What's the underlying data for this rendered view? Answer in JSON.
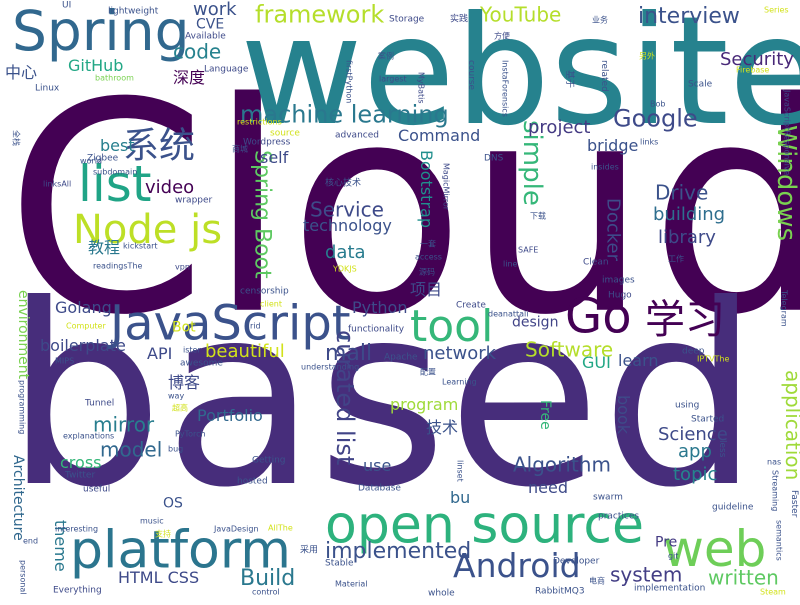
{
  "words": [
    {
      "text": "Cloud",
      "color": "#440154"
    },
    {
      "text": "based",
      "color": "#472d7b"
    },
    {
      "text": "website",
      "color": "#26828e"
    },
    {
      "text": "open source",
      "color": "#2db27d"
    },
    {
      "text": "platform",
      "color": "#2b758e"
    },
    {
      "text": "Spring",
      "color": "#31688e"
    },
    {
      "text": "JavaScript",
      "color": "#3b528b"
    },
    {
      "text": "tool",
      "color": "#35b779"
    },
    {
      "text": "Go",
      "color": "#440154"
    },
    {
      "text": "web",
      "color": "#6ece58"
    },
    {
      "text": "Android",
      "color": "#3b528b"
    },
    {
      "text": "list",
      "color": "#20a486"
    },
    {
      "text": "Node js",
      "color": "#bddf26"
    },
    {
      "text": "Windows",
      "color": "#7ad151"
    },
    {
      "text": "学习",
      "color": "#440154"
    },
    {
      "text": "系统",
      "color": "#3b528b"
    },
    {
      "text": "simple",
      "color": "#35b779"
    },
    {
      "text": "curated list",
      "color": "#414487"
    },
    {
      "text": "framework",
      "color": "#b5de2b"
    },
    {
      "text": "machine learning",
      "color": "#2a788e"
    },
    {
      "text": "Google",
      "color": "#3e4a89"
    },
    {
      "text": "interview",
      "color": "#3b528b"
    },
    {
      "text": "Spring Boot",
      "color": "#5ec962"
    },
    {
      "text": "application",
      "color": "#9fda3a"
    },
    {
      "text": "mall",
      "color": "#3e4a89"
    },
    {
      "text": "implemented",
      "color": "#3b528b"
    },
    {
      "text": "Build",
      "color": "#2a788e"
    },
    {
      "text": "Software",
      "color": "#b5de2b"
    },
    {
      "text": "Algorithm",
      "color": "#3b528b"
    },
    {
      "text": "system",
      "color": "#433e85"
    },
    {
      "text": "written",
      "color": "#5ec962"
    },
    {
      "text": "YouTube",
      "color": "#b5de2b"
    },
    {
      "text": "Security",
      "color": "#482878"
    },
    {
      "text": "project",
      "color": "#443a83"
    },
    {
      "text": "Drive",
      "color": "#3b528b"
    },
    {
      "text": "building",
      "color": "#2e6e8e"
    },
    {
      "text": "library",
      "color": "#3e4a89"
    },
    {
      "text": "Service",
      "color": "#3e4a89"
    },
    {
      "text": "Docker",
      "color": "#3e4a89"
    },
    {
      "text": "network",
      "color": "#3b528b"
    },
    {
      "text": "beautiful",
      "color": "#d2e21b"
    },
    {
      "text": "mirror",
      "color": "#287d8e"
    },
    {
      "text": "model",
      "color": "#31688e"
    },
    {
      "text": "Science",
      "color": "#3e4a89"
    },
    {
      "text": "app",
      "color": "#2a788e"
    },
    {
      "text": "topic",
      "color": "#25848e"
    },
    {
      "text": "GitHub",
      "color": "#22a785"
    },
    {
      "text": "code",
      "color": "#26828e"
    },
    {
      "text": "work",
      "color": "#3b528b"
    },
    {
      "text": "video",
      "color": "#440154"
    },
    {
      "text": "data",
      "color": "#287c8e"
    },
    {
      "text": "technology",
      "color": "#3b528b"
    },
    {
      "text": "Bootstrap",
      "color": "#218f8d"
    },
    {
      "text": "Command",
      "color": "#3b528b"
    },
    {
      "text": "bridge",
      "color": "#3b528b"
    },
    {
      "text": "best",
      "color": "#277f8e"
    },
    {
      "text": "self",
      "color": "#3e4a89"
    },
    {
      "text": "教程",
      "color": "#2a788e"
    },
    {
      "text": "中心",
      "color": "#3b528b"
    },
    {
      "text": "深度",
      "color": "#440154"
    },
    {
      "text": "项目",
      "color": "#3e4a89"
    },
    {
      "text": "技术",
      "color": "#3b528b"
    },
    {
      "text": "博客",
      "color": "#3e4a89"
    },
    {
      "text": "Python",
      "color": "#3e4a89"
    },
    {
      "text": "Golang",
      "color": "#3e4a89"
    },
    {
      "text": "boilerplate",
      "color": "#3e4a89"
    },
    {
      "text": "API",
      "color": "#3e4a89"
    },
    {
      "text": "program",
      "color": "#9fda3a"
    },
    {
      "text": "design",
      "color": "#414487"
    },
    {
      "text": "GUI",
      "color": "#22a785"
    },
    {
      "text": "learn",
      "color": "#3b528b"
    },
    {
      "text": "Portfolio",
      "color": "#31688e"
    },
    {
      "text": "use",
      "color": "#3b528b"
    },
    {
      "text": "need",
      "color": "#3e4a89"
    },
    {
      "text": "cross",
      "color": "#35b779"
    },
    {
      "text": "HTML CSS",
      "color": "#3e4a89"
    },
    {
      "text": "theme",
      "color": "#2a788e"
    },
    {
      "text": "environment",
      "color": "#7ad151"
    },
    {
      "text": "Architecture",
      "color": "#31688e"
    },
    {
      "text": "book",
      "color": "#3e4a89"
    },
    {
      "text": "Free",
      "color": "#35b779"
    },
    {
      "text": "bu",
      "color": "#31688e"
    },
    {
      "text": "OS",
      "color": "#3b528b"
    },
    {
      "text": "Pre",
      "color": "#443a83"
    },
    {
      "text": "CVE",
      "color": "#3b528b"
    },
    {
      "text": "Bot",
      "color": "#d2e21b"
    },
    {
      "text": "Storage",
      "color": "#3e4a89"
    },
    {
      "text": "Available",
      "color": "#3e4a89"
    },
    {
      "text": "lightweight",
      "color": "#3b528b"
    },
    {
      "text": "UI",
      "color": "#3b528b"
    },
    {
      "text": "Language",
      "color": "#3e4a89"
    },
    {
      "text": "Linux",
      "color": "#3b528b"
    },
    {
      "text": "bathroom",
      "color": "#7ad151"
    },
    {
      "text": "实践",
      "color": "#3e4a89"
    },
    {
      "text": "方便",
      "color": "#3e4a89"
    },
    {
      "text": "业务",
      "color": "#3b528b"
    },
    {
      "text": "Series",
      "color": "#d2e21b"
    },
    {
      "text": "另外",
      "color": "#d2e21b"
    },
    {
      "text": "Firebase",
      "color": "#d2e21b"
    },
    {
      "text": "Scale",
      "color": "#3b528b"
    },
    {
      "text": "related",
      "color": "#3b528b"
    },
    {
      "text": "基于",
      "color": "#3b528b"
    },
    {
      "text": "course",
      "color": "#3b528b"
    },
    {
      "text": "largest",
      "color": "#3e4a89"
    },
    {
      "text": "案例",
      "color": "#3b528b"
    },
    {
      "text": "firstPython",
      "color": "#3b528b"
    },
    {
      "text": "MyBatis",
      "color": "#3e4a89"
    },
    {
      "text": "InstaForensics",
      "color": "#3b528b"
    },
    {
      "text": "restrictions",
      "color": "#d2e21b"
    },
    {
      "text": "Wordpress",
      "color": "#3e4a89"
    },
    {
      "text": "source",
      "color": "#d2e21b"
    },
    {
      "text": "advanced",
      "color": "#3e4a89"
    },
    {
      "text": "商城",
      "color": "#3b528b"
    },
    {
      "text": "全栈",
      "color": "#3b528b"
    },
    {
      "text": "Zigbee",
      "color": "#3b528b"
    },
    {
      "text": "world",
      "color": "#3b528b"
    },
    {
      "text": "subdomain",
      "color": "#3b528b"
    },
    {
      "text": "wrapper",
      "color": "#3e4a89"
    },
    {
      "text": "kickstart",
      "color": "#3b528b"
    },
    {
      "text": "readingsThe",
      "color": "#3b528b"
    },
    {
      "text": "linksAll",
      "color": "#3e4a89"
    },
    {
      "text": "核心技术",
      "color": "#3b528b"
    },
    {
      "text": "MagicMirror",
      "color": "#3e4a89"
    },
    {
      "text": "DNS",
      "color": "#3b528b"
    },
    {
      "text": "insides",
      "color": "#3b528b"
    },
    {
      "text": "links",
      "color": "#3b528b"
    },
    {
      "text": "Bob",
      "color": "#3b528b"
    },
    {
      "text": "JavaScriptResponsive",
      "color": "#3e4a89"
    },
    {
      "text": "一套",
      "color": "#3b528b"
    },
    {
      "text": "access",
      "color": "#3b528b"
    },
    {
      "text": "SAFE",
      "color": "#3e4a89"
    },
    {
      "text": "下载",
      "color": "#3b528b"
    },
    {
      "text": "line",
      "color": "#3b528b"
    },
    {
      "text": "Clean",
      "color": "#3e4a89"
    },
    {
      "text": "工作",
      "color": "#3b528b"
    },
    {
      "text": "images",
      "color": "#3b528b"
    },
    {
      "text": "YDKJS",
      "color": "#d2e21b"
    },
    {
      "text": "源码",
      "color": "#3b528b"
    },
    {
      "text": "vpn",
      "color": "#3e4a89"
    },
    {
      "text": "censorship",
      "color": "#3b528b"
    },
    {
      "text": "client",
      "color": "#d2e21b"
    },
    {
      "text": "rid",
      "color": "#3b528b"
    },
    {
      "text": "Hugo",
      "color": "#3e4a89"
    },
    {
      "text": "deanattali",
      "color": "#3b528b"
    },
    {
      "text": "Create",
      "color": "#3e4a89"
    },
    {
      "text": "Telegram",
      "color": "#3b528b"
    },
    {
      "text": "Computer",
      "color": "#d2e21b"
    },
    {
      "text": "functionality",
      "color": "#3e4a89"
    },
    {
      "text": "ister",
      "color": "#3b528b"
    },
    {
      "text": "awesome",
      "color": "#3b528b"
    },
    {
      "text": "MIPS",
      "color": "#3b528b"
    },
    {
      "text": "understanding",
      "color": "#3b528b"
    },
    {
      "text": "Apache",
      "color": "#3b528b"
    },
    {
      "text": "配置",
      "color": "#3b528b"
    },
    {
      "text": "Learning",
      "color": "#3b528b"
    },
    {
      "text": "deep",
      "color": "#3b528b"
    },
    {
      "text": "IPTVThe",
      "color": "#d2e21b"
    },
    {
      "text": "way",
      "color": "#3b528b"
    },
    {
      "text": "Tunnel",
      "color": "#3e4a89"
    },
    {
      "text": "超高",
      "color": "#d2e21b"
    },
    {
      "text": "explanations",
      "color": "#3b528b"
    },
    {
      "text": "PyTorch",
      "color": "#3b528b"
    },
    {
      "text": "programming",
      "color": "#3b528b"
    },
    {
      "text": "bug",
      "color": "#3b528b"
    },
    {
      "text": "using",
      "color": "#3b528b"
    },
    {
      "text": "Started",
      "color": "#3b528b"
    },
    {
      "text": "less",
      "color": "#3b528b"
    },
    {
      "text": "Getting",
      "color": "#3b528b"
    },
    {
      "text": "Twitter",
      "color": "#3b528b"
    },
    {
      "text": "hosted",
      "color": "#3b528b"
    },
    {
      "text": "Database",
      "color": "#3b528b"
    },
    {
      "text": "useful",
      "color": "#3e4a89"
    },
    {
      "text": "linset",
      "color": "#3b528b"
    },
    {
      "text": "swarm",
      "color": "#3b528b"
    },
    {
      "text": "nas",
      "color": "#3b528b"
    },
    {
      "text": "Streaming",
      "color": "#3b528b"
    },
    {
      "text": "Faster",
      "color": "#3b528b"
    },
    {
      "text": "practices",
      "color": "#3b528b"
    },
    {
      "text": "interesting",
      "color": "#3b528b"
    },
    {
      "text": "music",
      "color": "#3b528b"
    },
    {
      "text": "JavaDesign",
      "color": "#3b528b"
    },
    {
      "text": "AllThe",
      "color": "#d2e21b"
    },
    {
      "text": "采用",
      "color": "#3b528b"
    },
    {
      "text": "guideline",
      "color": "#3b528b"
    },
    {
      "text": "semantics",
      "color": "#3b528b"
    },
    {
      "text": "git",
      "color": "#3b528b"
    },
    {
      "text": "Developer",
      "color": "#3b528b"
    },
    {
      "text": "电商",
      "color": "#3b528b"
    },
    {
      "text": "implementation",
      "color": "#3b528b"
    },
    {
      "text": "end",
      "color": "#3b528b"
    },
    {
      "text": "personal",
      "color": "#3b528b"
    },
    {
      "text": "Material",
      "color": "#3b528b"
    },
    {
      "text": "Stable",
      "color": "#3b528b"
    },
    {
      "text": "Everything",
      "color": "#3e4a89"
    },
    {
      "text": "control",
      "color": "#3b528b"
    },
    {
      "text": "whole",
      "color": "#3b528b"
    },
    {
      "text": "RabbitMQ3",
      "color": "#3b528b"
    },
    {
      "text": "Steam",
      "color": "#d2e21b"
    },
    {
      "text": "支持",
      "color": "#d2e21b"
    }
  ]
}
